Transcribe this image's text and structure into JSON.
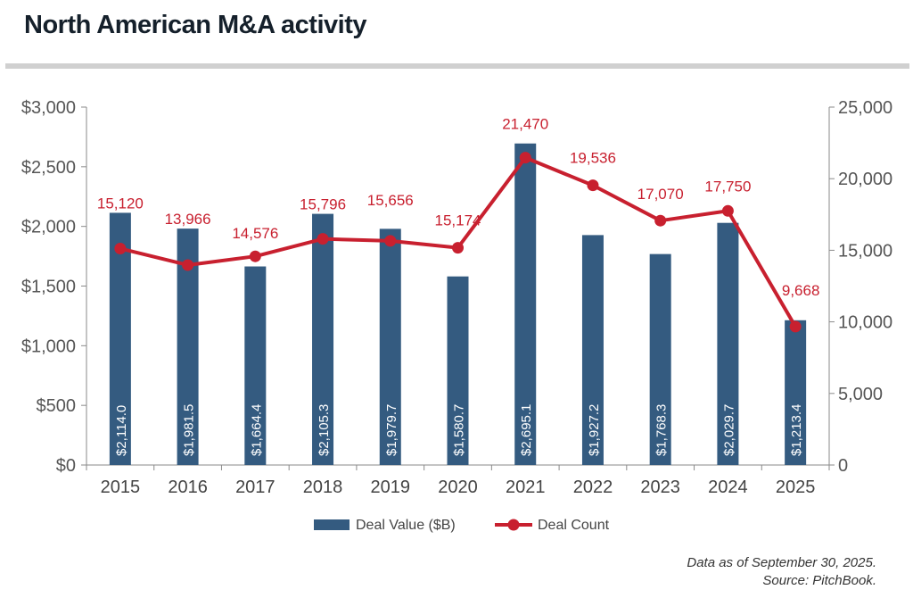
{
  "title": "North American M&A activity",
  "chart_data": {
    "type": "bar+line",
    "categories": [
      "2015",
      "2016",
      "2017",
      "2018",
      "2019",
      "2020",
      "2021",
      "2022",
      "2023",
      "2024",
      "2025"
    ],
    "series": [
      {
        "name": "Deal Value ($B)",
        "type": "bar",
        "axis": "left",
        "color": "#345b80",
        "values": [
          2114.0,
          1981.5,
          1664.4,
          2105.3,
          1979.7,
          1580.7,
          2695.1,
          1927.2,
          1768.3,
          2029.7,
          1213.4
        ],
        "labels": [
          "$2,114.0",
          "$1,981.5",
          "$1,664.4",
          "$2,105.3",
          "$1,979.7",
          "$1,580.7",
          "$2,695.1",
          "$1,927.2",
          "$1,768.3",
          "$2,029.7",
          "$1,213.4"
        ]
      },
      {
        "name": "Deal Count",
        "type": "line",
        "axis": "right",
        "color": "#c8202f",
        "values": [
          15120,
          13966,
          14576,
          15796,
          15656,
          15174,
          21470,
          19536,
          17070,
          17750,
          9668
        ],
        "labels": [
          "15,120",
          "13,966",
          "14,576",
          "15,796",
          "15,656",
          "15,174",
          "21,470",
          "19,536",
          "17,070",
          "17,750",
          "9,668"
        ]
      }
    ],
    "y_left": {
      "lim": [
        0,
        3000
      ],
      "ticks": [
        "$0",
        "$500",
        "$1,000",
        "$1,500",
        "$2,000",
        "$2,500",
        "$3,000"
      ]
    },
    "y_right": {
      "lim": [
        0,
        25000
      ],
      "ticks": [
        "0",
        "5,000",
        "10,000",
        "15,000",
        "20,000",
        "25,000"
      ]
    },
    "grid": false,
    "legend": "bottom"
  },
  "footer": {
    "line1": "Data as of September 30, 2025.",
    "line2": "Source: PitchBook."
  }
}
